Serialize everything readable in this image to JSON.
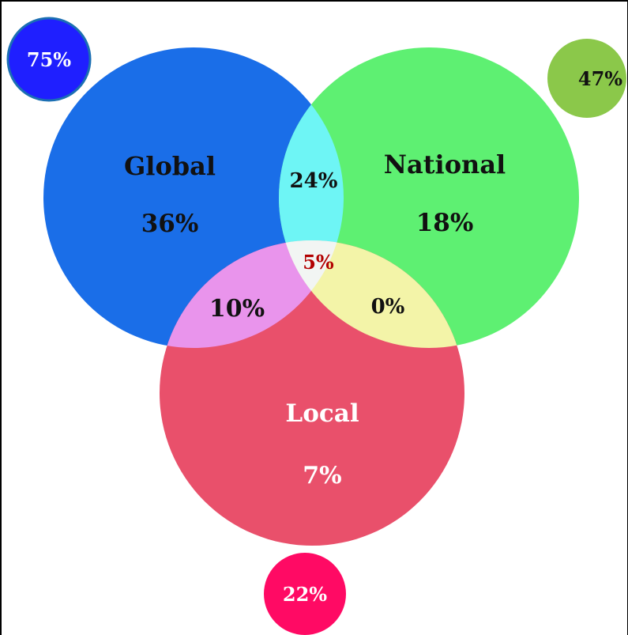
{
  "sets": {
    "global": {
      "label": "Global",
      "value": "36%",
      "color": "#1a6ee8"
    },
    "national": {
      "label": "National",
      "value": "18%",
      "color": "#5ef072"
    },
    "local": {
      "label": "Local",
      "value": "7%",
      "color": "#e9506b"
    }
  },
  "intersections": {
    "global_national": {
      "value": "24%",
      "color": "#6ef5f5"
    },
    "global_local": {
      "value": "10%",
      "color": "#e994ec"
    },
    "national_local": {
      "value": "0%",
      "color": "#f3f4a8"
    },
    "all_three": {
      "value": "5%",
      "color": "#f2f5f3",
      "text_color": "#b20000"
    }
  },
  "totals": {
    "global": {
      "value": "75%",
      "color": "#1f1fff"
    },
    "national": {
      "value": "47%",
      "color": "#8bc84a"
    },
    "local": {
      "value": "22%",
      "color": "#ff0a64"
    }
  }
}
